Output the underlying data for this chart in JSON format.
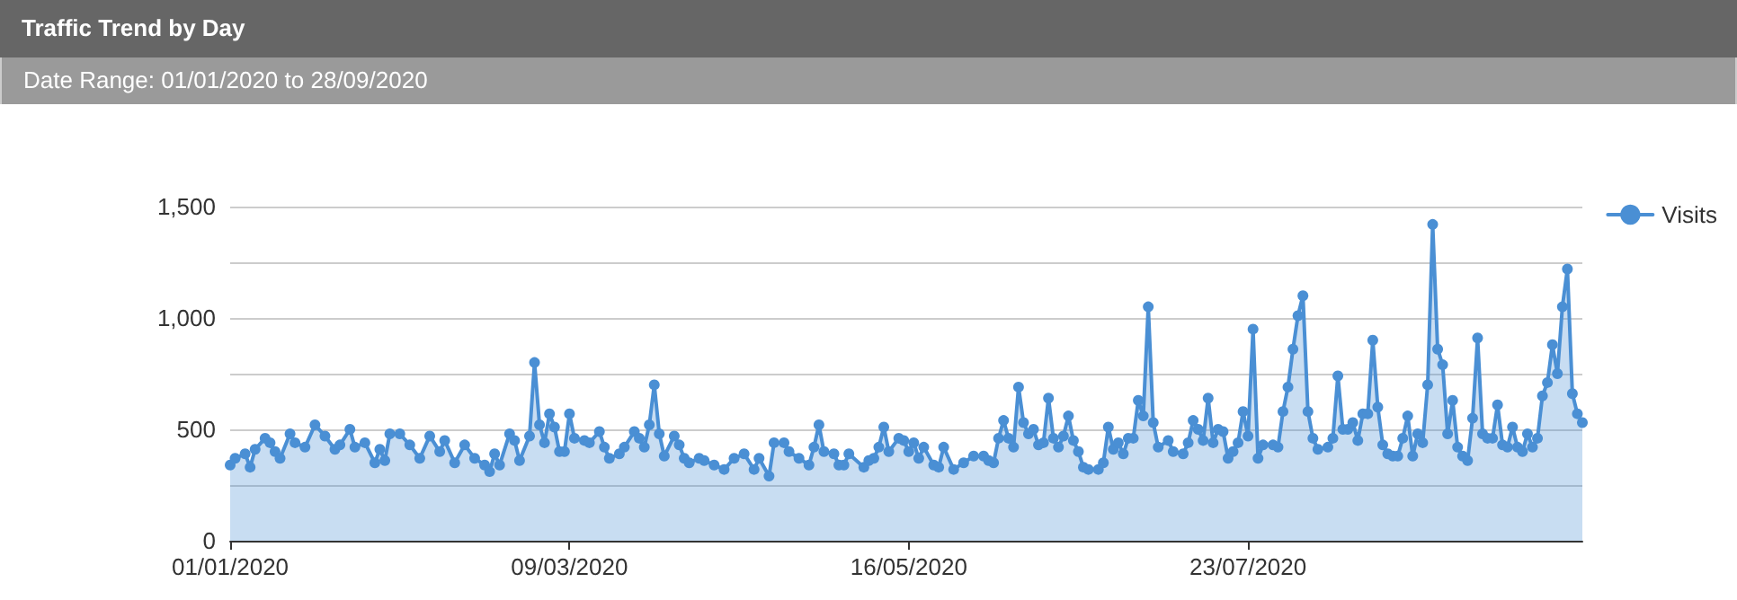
{
  "chart_data": {
    "type": "area",
    "title": "Traffic Trend by Day",
    "subtitle": "Date Range: 01/01/2020 to 28/09/2020",
    "x": [
      "2020-01-01",
      "2020-01-02",
      "2020-01-04",
      "2020-01-05",
      "2020-01-06",
      "2020-01-08",
      "2020-01-09",
      "2020-01-10",
      "2020-01-11",
      "2020-01-13",
      "2020-01-14",
      "2020-01-16",
      "2020-01-18",
      "2020-01-20",
      "2020-01-22",
      "2020-01-23",
      "2020-01-25",
      "2020-01-26",
      "2020-01-28",
      "2020-01-30",
      "2020-01-31",
      "2020-02-01",
      "2020-02-02",
      "2020-02-04",
      "2020-02-06",
      "2020-02-08",
      "2020-02-10",
      "2020-02-12",
      "2020-02-13",
      "2020-02-15",
      "2020-02-17",
      "2020-02-19",
      "2020-02-21",
      "2020-02-22",
      "2020-02-23",
      "2020-02-24",
      "2020-02-26",
      "2020-02-27",
      "2020-02-28",
      "2020-03-01",
      "2020-03-02",
      "2020-03-03",
      "2020-03-04",
      "2020-03-05",
      "2020-03-06",
      "2020-03-07",
      "2020-03-08",
      "2020-03-09",
      "2020-03-10",
      "2020-03-12",
      "2020-03-13",
      "2020-03-15",
      "2020-03-16",
      "2020-03-17",
      "2020-03-19",
      "2020-03-20",
      "2020-03-22",
      "2020-03-23",
      "2020-03-24",
      "2020-03-25",
      "2020-03-26",
      "2020-03-27",
      "2020-03-28",
      "2020-03-30",
      "2020-03-31",
      "2020-04-01",
      "2020-04-02",
      "2020-04-04",
      "2020-04-05",
      "2020-04-07",
      "2020-04-09",
      "2020-04-11",
      "2020-04-13",
      "2020-04-15",
      "2020-04-16",
      "2020-04-18",
      "2020-04-19",
      "2020-04-21",
      "2020-04-22",
      "2020-04-24",
      "2020-04-26",
      "2020-04-27",
      "2020-04-28",
      "2020-04-29",
      "2020-05-01",
      "2020-05-02",
      "2020-05-03",
      "2020-05-04",
      "2020-05-07",
      "2020-05-08",
      "2020-05-09",
      "2020-05-10",
      "2020-05-11",
      "2020-05-12",
      "2020-05-14",
      "2020-05-15",
      "2020-05-16",
      "2020-05-17",
      "2020-05-18",
      "2020-05-19",
      "2020-05-21",
      "2020-05-22",
      "2020-05-23",
      "2020-05-25",
      "2020-05-27",
      "2020-05-29",
      "2020-05-31",
      "2020-06-01",
      "2020-06-02",
      "2020-06-03",
      "2020-06-04",
      "2020-06-05",
      "2020-06-06",
      "2020-06-07",
      "2020-06-08",
      "2020-06-09",
      "2020-06-10",
      "2020-06-11",
      "2020-06-12",
      "2020-06-13",
      "2020-06-14",
      "2020-06-15",
      "2020-06-16",
      "2020-06-17",
      "2020-06-18",
      "2020-06-19",
      "2020-06-20",
      "2020-06-21",
      "2020-06-23",
      "2020-06-24",
      "2020-06-25",
      "2020-06-26",
      "2020-06-27",
      "2020-06-28",
      "2020-06-29",
      "2020-06-30",
      "2020-07-01",
      "2020-07-02",
      "2020-07-03",
      "2020-07-04",
      "2020-07-05",
      "2020-07-07",
      "2020-07-08",
      "2020-07-10",
      "2020-07-11",
      "2020-07-12",
      "2020-07-13",
      "2020-07-14",
      "2020-07-15",
      "2020-07-16",
      "2020-07-17",
      "2020-07-18",
      "2020-07-19",
      "2020-07-20",
      "2020-07-21",
      "2020-07-22",
      "2020-07-23",
      "2020-07-24",
      "2020-07-25",
      "2020-07-26",
      "2020-07-28",
      "2020-07-29",
      "2020-07-30",
      "2020-07-31",
      "2020-08-01",
      "2020-08-02",
      "2020-08-03",
      "2020-08-04",
      "2020-08-05",
      "2020-08-06",
      "2020-08-08",
      "2020-08-09",
      "2020-08-10",
      "2020-08-11",
      "2020-08-12",
      "2020-08-13",
      "2020-08-14",
      "2020-08-15",
      "2020-08-16",
      "2020-08-17",
      "2020-08-18",
      "2020-08-19",
      "2020-08-20",
      "2020-08-21",
      "2020-08-22",
      "2020-08-23",
      "2020-08-24",
      "2020-08-25",
      "2020-08-26",
      "2020-08-27",
      "2020-08-28",
      "2020-08-29",
      "2020-08-30",
      "2020-08-31",
      "2020-09-01",
      "2020-09-02",
      "2020-09-03",
      "2020-09-04",
      "2020-09-05",
      "2020-09-06",
      "2020-09-07",
      "2020-09-08",
      "2020-09-09",
      "2020-09-10",
      "2020-09-11",
      "2020-09-12",
      "2020-09-13",
      "2020-09-14",
      "2020-09-15",
      "2020-09-16",
      "2020-09-17",
      "2020-09-18",
      "2020-09-19",
      "2020-09-20",
      "2020-09-21",
      "2020-09-22",
      "2020-09-23",
      "2020-09-24",
      "2020-09-25",
      "2020-09-26",
      "2020-09-27",
      "2020-09-28"
    ],
    "series": [
      {
        "name": "Visits",
        "color": "#4a8fd4",
        "values": [
          340,
          370,
          390,
          330,
          410,
          460,
          440,
          400,
          370,
          480,
          440,
          420,
          520,
          470,
          410,
          430,
          500,
          420,
          440,
          350,
          410,
          360,
          480,
          480,
          430,
          370,
          470,
          400,
          450,
          350,
          430,
          370,
          340,
          310,
          390,
          340,
          480,
          450,
          360,
          470,
          800,
          520,
          440,
          570,
          510,
          400,
          400,
          570,
          460,
          450,
          440,
          490,
          420,
          370,
          390,
          420,
          490,
          460,
          420,
          520,
          700,
          480,
          380,
          470,
          430,
          370,
          350,
          370,
          360,
          340,
          320,
          370,
          390,
          320,
          370,
          290,
          440,
          440,
          400,
          370,
          340,
          420,
          520,
          400,
          390,
          340,
          340,
          390,
          330,
          360,
          370,
          420,
          510,
          400,
          460,
          450,
          400,
          440,
          370,
          420,
          340,
          330,
          420,
          320,
          350,
          380,
          380,
          360,
          350,
          460,
          540,
          460,
          420,
          690,
          530,
          480,
          500,
          430,
          440,
          640,
          460,
          420,
          470,
          560,
          450,
          400,
          330,
          320,
          320,
          350,
          510,
          410,
          440,
          390,
          460,
          460,
          630,
          560,
          1050,
          530,
          420,
          450,
          400,
          390,
          440,
          540,
          500,
          450,
          640,
          440,
          500,
          490,
          370,
          400,
          440,
          580,
          470,
          950,
          370,
          430,
          430,
          420,
          580,
          690,
          860,
          1010,
          1100,
          580,
          460,
          410,
          420,
          460,
          740,
          500,
          500,
          530,
          450,
          570,
          570,
          900,
          600,
          430,
          390,
          380,
          380,
          460,
          560,
          380,
          480,
          440,
          700,
          1420,
          860,
          790,
          480,
          630,
          420,
          380,
          360,
          550,
          910,
          480,
          460,
          460,
          610,
          430,
          420,
          510,
          420,
          400,
          480,
          420,
          460,
          650,
          710,
          880,
          750,
          1050,
          1220,
          660,
          570,
          530
        ]
      }
    ],
    "xlim": [
      "2020-01-01",
      "2020-09-28"
    ],
    "xticks": [
      {
        "value": "2020-01-01",
        "label": "01/01/2020"
      },
      {
        "value": "2020-03-09",
        "label": "09/03/2020"
      },
      {
        "value": "2020-05-16",
        "label": "16/05/2020"
      },
      {
        "value": "2020-07-23",
        "label": "23/07/2020"
      }
    ],
    "ylim": [
      0,
      1500
    ],
    "yticks": [
      0,
      {
        "value": 250,
        "label": null
      },
      500,
      {
        "value": 750,
        "label": null
      },
      {
        "value": 1000,
        "label": "1,000"
      },
      {
        "value": 1250,
        "label": null
      },
      {
        "value": 1500,
        "label": "1,500"
      }
    ],
    "grid": "y",
    "legend": "right",
    "marker": "circle",
    "line_style": "solid"
  }
}
